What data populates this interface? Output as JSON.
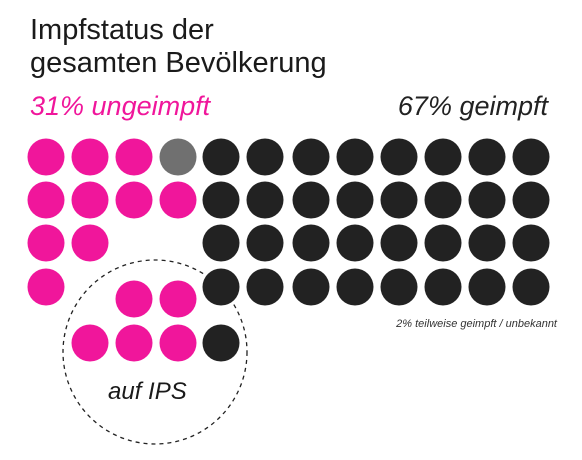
{
  "title_line1": "Impfstatus der",
  "title_line2": "gesamten Bevölkerung",
  "unvaccinated_label": "31% ungeimpft",
  "vaccinated_label": "67% geimpft",
  "footnote": "2% teilweise geimpft / unbekannt",
  "icu_label": "auf IPS",
  "colors": {
    "unvaccinated": "#f0169b",
    "vaccinated": "#222222",
    "partial_unknown": "#707070"
  },
  "chart_data": {
    "type": "dot-matrix",
    "unit": "Personen",
    "population": {
      "ungeimpft": 31,
      "geimpft": 67,
      "teilweise geimpft / unbekannt": 2
    },
    "dots_population": {
      "ungeimpft": 10,
      "teilweise geimpft / unbekannt": 1,
      "geimpft": 32
    },
    "dots_icu": {
      "ungeimpft": 5,
      "geimpft": 1
    }
  }
}
